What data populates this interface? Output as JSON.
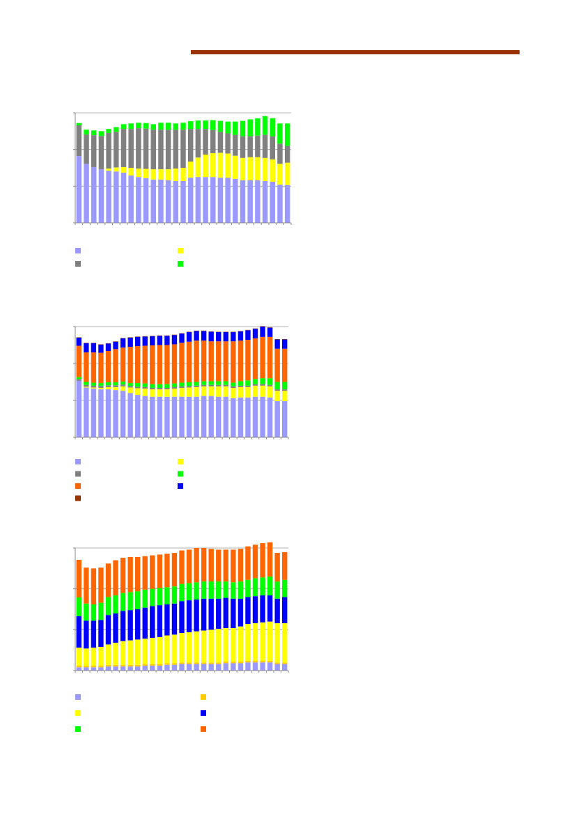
{
  "chart_data": [
    {
      "type": "bar",
      "stacked": true,
      "ylim": [
        0,
        3
      ],
      "yticks": [
        0,
        1,
        2,
        3
      ],
      "grid": true,
      "series": [
        {
          "color": "#9999ff",
          "values": [
            1.82,
            1.61,
            1.52,
            1.46,
            1.42,
            1.4,
            1.37,
            1.29,
            1.25,
            1.22,
            1.18,
            1.18,
            1.16,
            1.14,
            1.14,
            1.23,
            1.25,
            1.25,
            1.25,
            1.23,
            1.23,
            1.2,
            1.16,
            1.16,
            1.16,
            1.14,
            1.12,
            1.04,
            1.03
          ]
        },
        {
          "color": "#ffff00",
          "values": [
            0,
            0,
            0,
            0,
            0.06,
            0.11,
            0.15,
            0.21,
            0.23,
            0.25,
            0.28,
            0.28,
            0.3,
            0.34,
            0.36,
            0.44,
            0.53,
            0.61,
            0.65,
            0.68,
            0.66,
            0.63,
            0.61,
            0.63,
            0.63,
            0.63,
            0.61,
            0.57,
            0.61
          ]
        },
        {
          "color": "#808080",
          "values": [
            0.84,
            0.8,
            0.87,
            0.91,
            0.97,
            0.97,
            1.04,
            1.06,
            1.1,
            1.1,
            1.08,
            1.08,
            1.08,
            1.06,
            1.04,
            0.89,
            0.78,
            0.7,
            0.63,
            0.57,
            0.55,
            0.57,
            0.59,
            0.57,
            0.59,
            0.63,
            0.63,
            0.55,
            0.46
          ]
        },
        {
          "color": "#00ff00",
          "values": [
            0.06,
            0.13,
            0.13,
            0.13,
            0.11,
            0.13,
            0.13,
            0.15,
            0.15,
            0.15,
            0.15,
            0.19,
            0.19,
            0.17,
            0.19,
            0.21,
            0.23,
            0.23,
            0.27,
            0.3,
            0.32,
            0.36,
            0.42,
            0.46,
            0.47,
            0.51,
            0.49,
            0.55,
            0.61
          ]
        }
      ]
    },
    {
      "type": "bar",
      "stacked": true,
      "ylim": [
        0,
        3
      ],
      "yticks": [
        0,
        1,
        2,
        3
      ],
      "grid": true,
      "series": [
        {
          "color": "#9999ff",
          "values": [
            1.53,
            1.35,
            1.32,
            1.3,
            1.3,
            1.28,
            1.26,
            1.2,
            1.15,
            1.12,
            1.1,
            1.1,
            1.1,
            1.1,
            1.1,
            1.1,
            1.1,
            1.12,
            1.12,
            1.1,
            1.1,
            1.06,
            1.08,
            1.08,
            1.1,
            1.1,
            1.08,
            0.98,
            0.98
          ]
        },
        {
          "color": "#ffff00",
          "values": [
            0,
            0.02,
            0.03,
            0.04,
            0.06,
            0.08,
            0.12,
            0.15,
            0.18,
            0.2,
            0.2,
            0.2,
            0.2,
            0.22,
            0.24,
            0.25,
            0.26,
            0.26,
            0.26,
            0.28,
            0.28,
            0.28,
            0.28,
            0.28,
            0.3,
            0.3,
            0.3,
            0.28,
            0.28
          ]
        },
        {
          "color": "#808080",
          "values": [
            0.05,
            0.05,
            0.05,
            0.05,
            0.05,
            0.05,
            0.05,
            0.04,
            0.04,
            0.04,
            0.04,
            0.04,
            0.04,
            0.04,
            0.04,
            0.04,
            0.04,
            0.04,
            0.04,
            0.04,
            0.04,
            0.04,
            0.04,
            0.04,
            0.04,
            0.04,
            0.04,
            0.04,
            0.04
          ]
        },
        {
          "color": "#00ff00",
          "values": [
            0.05,
            0.08,
            0.08,
            0.08,
            0.08,
            0.08,
            0.08,
            0.08,
            0.1,
            0.1,
            0.1,
            0.1,
            0.1,
            0.1,
            0.1,
            0.1,
            0.1,
            0.1,
            0.1,
            0.1,
            0.1,
            0.1,
            0.12,
            0.14,
            0.14,
            0.16,
            0.18,
            0.2,
            0.2
          ]
        },
        {
          "color": "#ff6600",
          "values": [
            0.85,
            0.8,
            0.82,
            0.82,
            0.85,
            0.9,
            0.92,
            0.98,
            1.0,
            1.02,
            1.05,
            1.06,
            1.06,
            1.06,
            1.08,
            1.1,
            1.12,
            1.1,
            1.08,
            1.08,
            1.08,
            1.12,
            1.1,
            1.1,
            1.1,
            1.12,
            1.12,
            0.9,
            0.9
          ]
        },
        {
          "color": "#0000ff",
          "values": [
            0.22,
            0.25,
            0.25,
            0.22,
            0.2,
            0.2,
            0.25,
            0.25,
            0.25,
            0.25,
            0.25,
            0.25,
            0.25,
            0.25,
            0.25,
            0.26,
            0.26,
            0.26,
            0.26,
            0.25,
            0.25,
            0.25,
            0.25,
            0.26,
            0.26,
            0.28,
            0.25,
            0.25,
            0.25
          ]
        },
        {
          "color": "#993300",
          "values": [
            0.01,
            0.01,
            0.01,
            0.01,
            0.01,
            0.01,
            0.01,
            0.01,
            0.01,
            0.01,
            0.01,
            0.01,
            0.01,
            0.01,
            0.01,
            0.01,
            0.01,
            0.01,
            0.01,
            0.01,
            0.01,
            0.01,
            0.01,
            0.01,
            0.01,
            0.01,
            0.01,
            0.01,
            0.01
          ]
        }
      ]
    },
    {
      "type": "bar",
      "stacked": true,
      "ylim": [
        0,
        3
      ],
      "yticks": [
        0,
        1,
        2,
        3
      ],
      "grid": true,
      "series": [
        {
          "color": "#9999ff",
          "values": [
            0.08,
            0.08,
            0.08,
            0.08,
            0.1,
            0.1,
            0.1,
            0.1,
            0.1,
            0.12,
            0.12,
            0.12,
            0.14,
            0.14,
            0.16,
            0.16,
            0.16,
            0.16,
            0.16,
            0.16,
            0.18,
            0.18,
            0.18,
            0.2,
            0.2,
            0.2,
            0.2,
            0.16,
            0.16
          ]
        },
        {
          "color": "#ffcc00",
          "values": [
            0.04,
            0.04,
            0.04,
            0.04,
            0.04,
            0.04,
            0.04,
            0.04,
            0.04,
            0.04,
            0.04,
            0.04,
            0.04,
            0.04,
            0.04,
            0.04,
            0.04,
            0.04,
            0.04,
            0.04,
            0.04,
            0.04,
            0.04,
            0.04,
            0.04,
            0.04,
            0.04,
            0.04,
            0.04
          ]
        },
        {
          "color": "#ffff00",
          "values": [
            0.44,
            0.42,
            0.44,
            0.46,
            0.5,
            0.54,
            0.58,
            0.6,
            0.62,
            0.62,
            0.64,
            0.66,
            0.68,
            0.7,
            0.72,
            0.74,
            0.76,
            0.78,
            0.8,
            0.82,
            0.82,
            0.82,
            0.86,
            0.9,
            0.92,
            0.94,
            0.96,
            0.96,
            0.96
          ]
        },
        {
          "color": "#0000ff",
          "values": [
            0.77,
            0.68,
            0.66,
            0.66,
            0.72,
            0.72,
            0.74,
            0.74,
            0.74,
            0.76,
            0.78,
            0.78,
            0.76,
            0.76,
            0.78,
            0.78,
            0.78,
            0.78,
            0.76,
            0.74,
            0.74,
            0.72,
            0.68,
            0.66,
            0.66,
            0.66,
            0.64,
            0.6,
            0.64
          ]
        },
        {
          "color": "#00ff00",
          "values": [
            0.46,
            0.42,
            0.4,
            0.42,
            0.44,
            0.44,
            0.44,
            0.44,
            0.44,
            0.44,
            0.42,
            0.42,
            0.42,
            0.42,
            0.42,
            0.42,
            0.42,
            0.42,
            0.42,
            0.42,
            0.4,
            0.4,
            0.42,
            0.42,
            0.44,
            0.44,
            0.46,
            0.42,
            0.42
          ]
        },
        {
          "color": "#ff6600",
          "values": [
            0.92,
            0.88,
            0.88,
            0.86,
            0.82,
            0.86,
            0.86,
            0.86,
            0.84,
            0.82,
            0.82,
            0.82,
            0.82,
            0.82,
            0.82,
            0.82,
            0.84,
            0.82,
            0.8,
            0.78,
            0.78,
            0.8,
            0.8,
            0.82,
            0.82,
            0.84,
            0.84,
            0.7,
            0.68
          ]
        }
      ]
    }
  ]
}
